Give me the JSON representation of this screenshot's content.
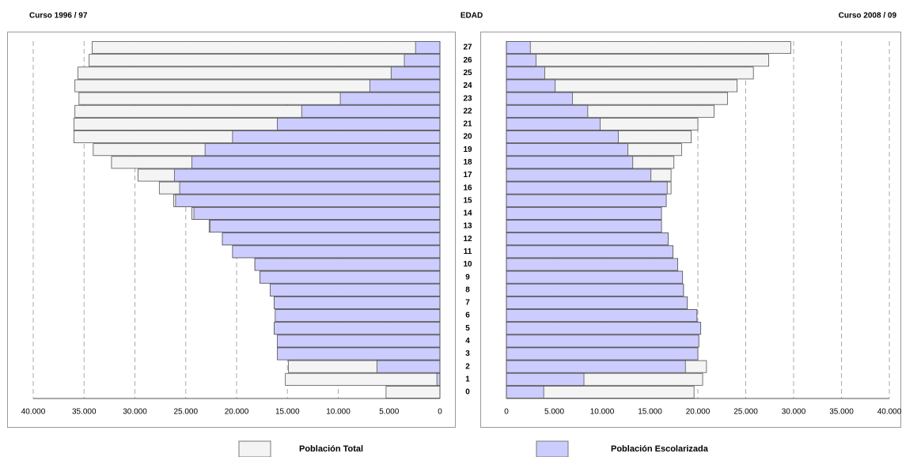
{
  "chart_data": {
    "type": "bar",
    "title": "EDAD",
    "categories": [
      "0",
      "1",
      "2",
      "3",
      "4",
      "5",
      "6",
      "7",
      "8",
      "9",
      "10",
      "11",
      "12",
      "13",
      "14",
      "15",
      "16",
      "17",
      "18",
      "19",
      "20",
      "21",
      "22",
      "23",
      "24",
      "25",
      "26",
      "27"
    ],
    "series": [
      {
        "name": "Población Total",
        "color": "#f4f4f4"
      },
      {
        "name": "Población Escolarizada",
        "color": "#ccccff"
      }
    ],
    "panels": [
      {
        "title": "Curso 1996 / 97",
        "xlim": [
          40000,
          0
        ],
        "xticks": [
          {
            "value": 40000,
            "label": "40.000"
          },
          {
            "value": 35000,
            "label": "35.000"
          },
          {
            "value": 30000,
            "label": "30.000"
          },
          {
            "value": 25000,
            "label": "25.000"
          },
          {
            "value": 20000,
            "label": "20.000"
          },
          {
            "value": 15000,
            "label": "15.000"
          },
          {
            "value": 10000,
            "label": "10.000"
          },
          {
            "value": 5000,
            "label": "5.000"
          },
          0
        ],
        "series": [
          {
            "values": [
              5300,
              15200,
              14900,
              16000,
              16000,
              16300,
              16200,
              16300,
              16700,
              17700,
              18200,
              20400,
              21400,
              22700,
              24400,
              26200,
              27600,
              29700,
              32300,
              34100,
              36000,
              36000,
              35900,
              35500,
              35900,
              35600,
              34500,
              34200
            ]
          },
          {
            "values": [
              0,
              300,
              6200,
              16000,
              16000,
              16300,
              16200,
              16300,
              16700,
              17700,
              18200,
              20400,
              21400,
              22600,
              24200,
              26000,
              25600,
              26100,
              24400,
              23100,
              20400,
              16000,
              13600,
              9800,
              6900,
              4800,
              3500,
              2400
            ]
          }
        ]
      },
      {
        "title": "Curso 2008 / 09",
        "xlim": [
          0,
          40000
        ],
        "xticks": [
          0,
          {
            "value": 5000,
            "label": "5.000"
          },
          {
            "value": 10000,
            "label": "10.000"
          },
          {
            "value": 15000,
            "label": "15.000"
          },
          {
            "value": 20000,
            "label": "20.000"
          },
          {
            "value": 25000,
            "label": "25.000"
          },
          {
            "value": 30000,
            "label": "30.000"
          },
          {
            "value": 35000,
            "label": "35.000"
          },
          {
            "value": 40000,
            "label": "40.000"
          }
        ],
        "series": [
          {
            "values": [
              19600,
              20500,
              20900,
              20000,
              20100,
              20300,
              19900,
              18900,
              18500,
              18400,
              17900,
              17400,
              16900,
              16200,
              16200,
              16700,
              17200,
              17200,
              17500,
              18300,
              19300,
              20000,
              21700,
              23100,
              24100,
              25800,
              27400,
              29700
            ]
          },
          {
            "values": [
              3900,
              8100,
              18700,
              20000,
              20100,
              20300,
              19900,
              18900,
              18500,
              18400,
              17900,
              17400,
              16900,
              16200,
              16200,
              16700,
              16800,
              15100,
              13200,
              12700,
              11700,
              9800,
              8500,
              6900,
              5100,
              4000,
              3100,
              2500
            ]
          }
        ]
      }
    ]
  }
}
